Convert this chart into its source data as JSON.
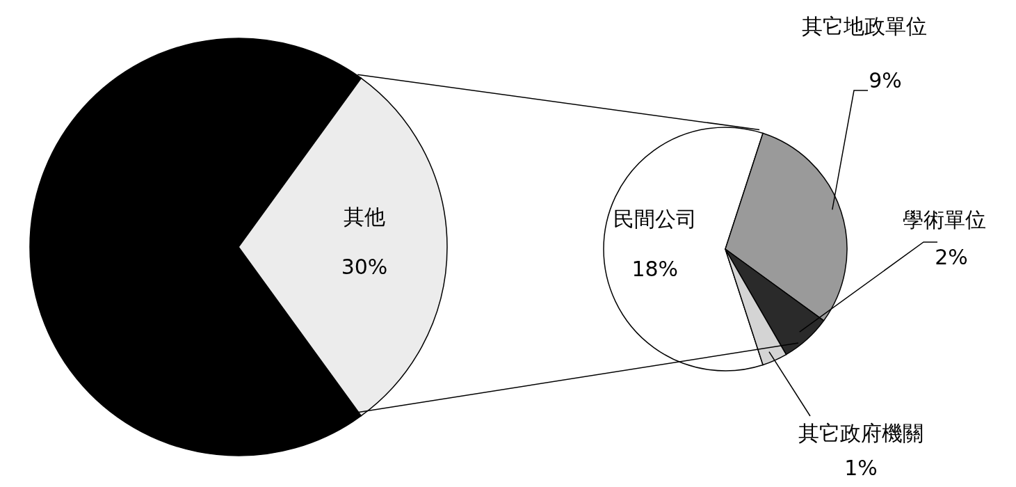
{
  "chart_data": [
    {
      "type": "pie",
      "categories": [
        null,
        "其他"
      ],
      "values": [
        70,
        30
      ],
      "colors": [
        "#000000",
        "#ececec"
      ],
      "value_labels": [
        null,
        "30%"
      ]
    },
    {
      "type": "pie",
      "categories": [
        "民間公司",
        "其它地政單位",
        "學術單位",
        "其它政府機關"
      ],
      "values": [
        18,
        9,
        2,
        1
      ],
      "colors": [
        "#ffffff",
        "#9a9a9a",
        "#2a2a2a",
        "#d4d4d4"
      ],
      "value_labels": [
        "18%",
        "9%",
        "2%",
        "1%"
      ]
    }
  ]
}
